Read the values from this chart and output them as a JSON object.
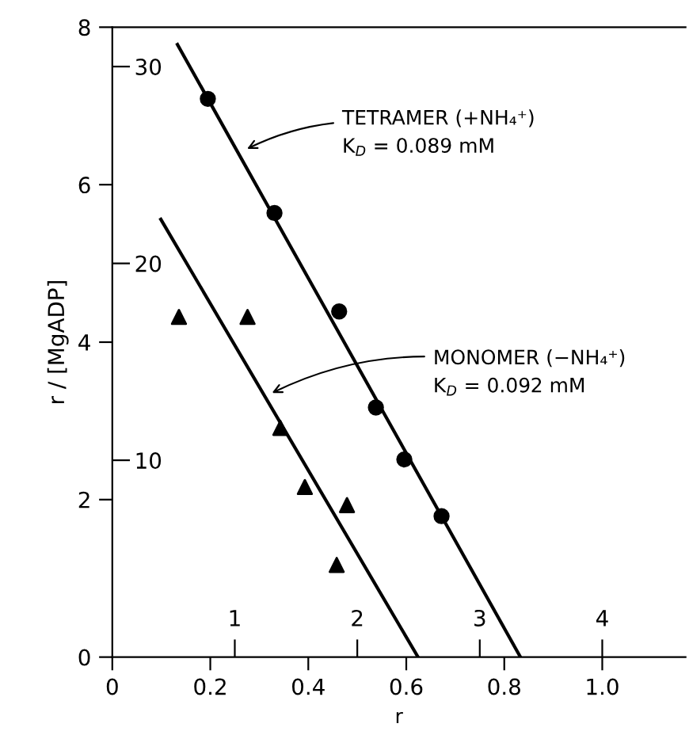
{
  "chart_data": {
    "type": "scatter",
    "xlabel": "r",
    "ylabel": "r / [MgADP]",
    "xlim": [
      0,
      1.17
    ],
    "ylim": [
      0,
      8
    ],
    "xticks": [
      0,
      0.2,
      0.4,
      0.6,
      0.8,
      {
        "value": 1.0,
        "label": "1.0"
      }
    ],
    "yticks": [
      0,
      2,
      4,
      6,
      8
    ],
    "x2lim": [
      0,
      4.68
    ],
    "x2ticks": [
      1,
      2,
      3,
      4
    ],
    "y2lim": [
      0,
      32
    ],
    "y2ticks": [
      10,
      20,
      30
    ],
    "grid": false,
    "series": [
      {
        "color": "#000000",
        "marker": "circle",
        "x": [
          0.195,
          0.331,
          0.463,
          0.538,
          0.596,
          0.672
        ],
        "values": [
          7.09,
          5.64,
          4.39,
          3.17,
          2.51,
          1.79
        ]
      },
      {
        "color": "#000000",
        "marker": "triangle",
        "x": [
          0.136,
          0.276,
          0.343,
          0.393,
          0.458,
          0.479
        ],
        "values": [
          4.32,
          4.32,
          2.91,
          2.16,
          1.17,
          1.93
        ]
      },
      {
        "type": "line",
        "color": "#000000",
        "line_style": "solid",
        "x": [
          0.133,
          0.833
        ],
        "values": [
          7.78,
          0
        ]
      },
      {
        "type": "line",
        "color": "#000000",
        "line_style": "solid",
        "x": [
          0.099,
          0.624
        ],
        "values": [
          5.56,
          0
        ]
      }
    ],
    "annotations": [
      {
        "text": "TETRAMER (+NH₄⁺)\nK$_{D}$ = 0.089 mM",
        "x": 0.267,
        "y": 6.43
      },
      {
        "text": "MONOMER (−NH₄⁺)\nK$_{D}$ = 0.092 mM",
        "x": 0.318,
        "y": 3.33
      }
    ]
  }
}
